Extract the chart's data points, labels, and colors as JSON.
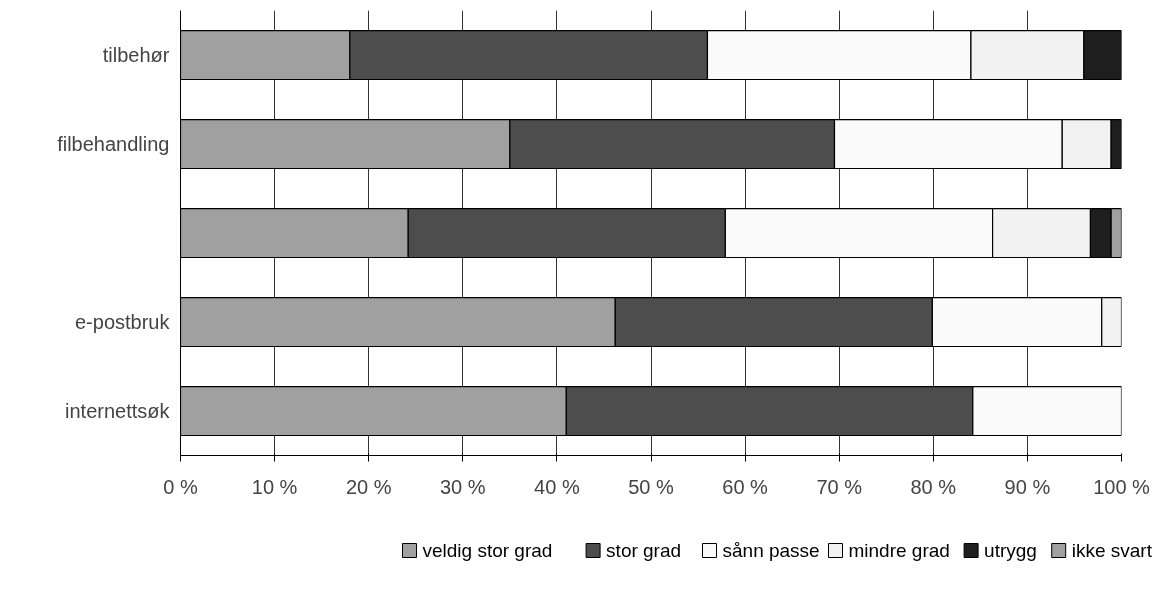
{
  "chart_data": {
    "type": "bar",
    "orientation": "horizontal",
    "stacked": true,
    "categories": [
      "tilbehør",
      "filbehandling",
      null,
      "e-postbruk",
      "internettsøk"
    ],
    "series": [
      {
        "name": "veldig stor grad",
        "color": "#a0a0a0",
        "values": [
          18,
          35,
          24.2,
          46.2,
          41
        ]
      },
      {
        "name": "stor grad",
        "color": "#4d4d4d",
        "values": [
          38,
          34.5,
          33.7,
          33.7,
          43.2
        ]
      },
      {
        "name": "sånn passe",
        "color": "#fafafa",
        "values": [
          28,
          24.2,
          28.4,
          18,
          15.8
        ]
      },
      {
        "name": "mindre grad",
        "color": "#f2f2f2",
        "values": [
          12,
          5.2,
          10.4,
          2.1,
          null
        ]
      },
      {
        "name": "utrygg",
        "color": "#1e1e1e",
        "values": [
          4,
          1.1,
          2.2,
          null,
          null
        ]
      },
      {
        "name": "ikke svart",
        "color": "#a0a0a0",
        "values": [
          null,
          null,
          1.1,
          null,
          null
        ]
      }
    ],
    "xlim": [
      0,
      100
    ],
    "xticks": [
      {
        "value": 0,
        "label": "0 %"
      },
      {
        "value": 10,
        "label": "10 %"
      },
      {
        "value": 20,
        "label": "20 %"
      },
      {
        "value": 30,
        "label": "30 %"
      },
      {
        "value": 40,
        "label": "40 %"
      },
      {
        "value": 50,
        "label": "50 %"
      },
      {
        "value": 60,
        "label": "60 %"
      },
      {
        "value": 70,
        "label": "70 %"
      },
      {
        "value": 80,
        "label": "80 %"
      },
      {
        "value": 90,
        "label": "90 %"
      },
      {
        "value": 100,
        "label": "100 %"
      }
    ],
    "grid": "x",
    "legend": "bottom"
  }
}
